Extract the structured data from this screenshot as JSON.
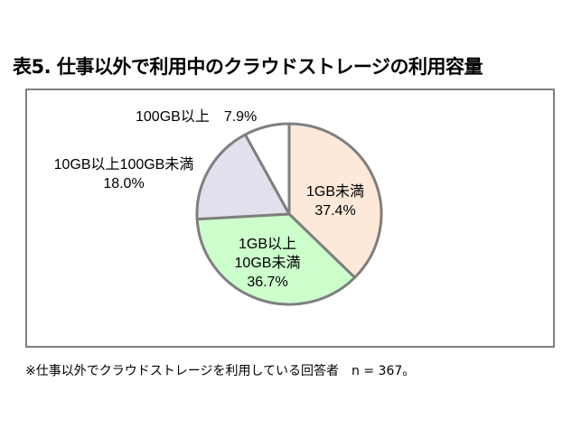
{
  "title": "表5. 仕事以外で利用中のクラウドストレージの利用容量",
  "footnote": "※仕事以外でクラウドストレージを利用している回答者　n = 367。",
  "chart_data": {
    "type": "pie",
    "title": "表5. 仕事以外で利用中のクラウドストレージの利用容量",
    "categories": [
      "1GB未満",
      "1GB以上10GB未満",
      "10GB以上100GB未満",
      "100GB以上"
    ],
    "values": [
      37.4,
      36.7,
      18.0,
      7.9
    ],
    "unit": "%",
    "colors": [
      "#fde9d9",
      "#ccffcc",
      "#e4dfec",
      "#ffffff"
    ],
    "border_color": "#7f7f7f",
    "n": 367,
    "start_angle": "12 o'clock, clockwise",
    "labels": [
      {
        "line1": "1GB未満",
        "line2": "37.4%"
      },
      {
        "line1": "1GB以上",
        "line2": "10GB未満",
        "line3": "36.7%"
      },
      {
        "line1": "10GB以上100GB未満",
        "line2": "18.0%"
      },
      {
        "line1": "100GB以上　7.9%"
      }
    ]
  }
}
